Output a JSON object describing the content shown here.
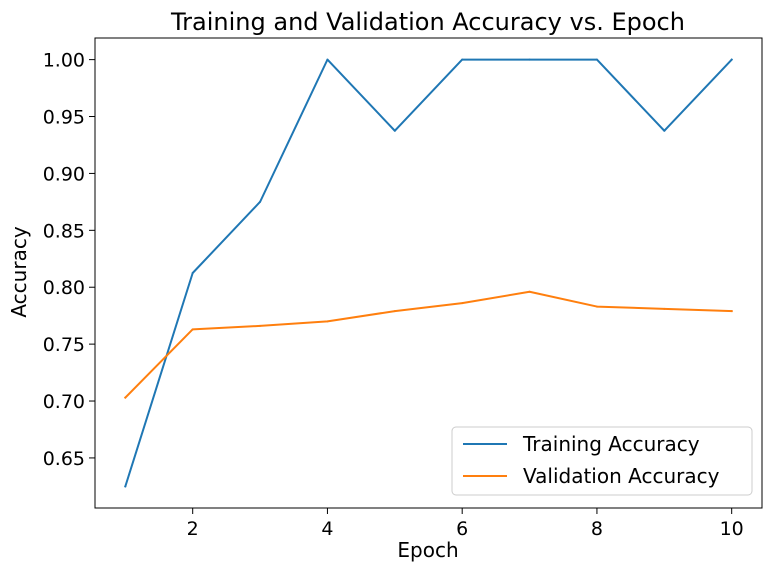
{
  "chart_data": {
    "type": "line",
    "title": "Training and Validation Accuracy vs. Epoch",
    "xlabel": "Epoch",
    "ylabel": "Accuracy",
    "x": [
      1,
      2,
      3,
      4,
      5,
      6,
      7,
      8,
      9,
      10
    ],
    "series": [
      {
        "name": "Training Accuracy",
        "color": "#1f77b4",
        "values": [
          0.625,
          0.8125,
          0.875,
          1.0,
          0.9375,
          1.0,
          1.0,
          1.0,
          0.9375,
          1.0
        ]
      },
      {
        "name": "Validation Accuracy",
        "color": "#ff7f0e",
        "values": [
          0.703,
          0.763,
          0.766,
          0.77,
          0.779,
          0.786,
          0.796,
          0.783,
          0.781,
          0.779
        ]
      }
    ],
    "xlim": [
      0.55,
      10.45
    ],
    "ylim": [
      0.606,
      1.019
    ],
    "xticks": [
      2,
      4,
      6,
      8,
      10
    ],
    "xtick_labels": [
      "2",
      "4",
      "6",
      "8",
      "10"
    ],
    "yticks": [
      0.65,
      0.7,
      0.75,
      0.8,
      0.85,
      0.9,
      0.95,
      1.0
    ],
    "ytick_labels": [
      "0.65",
      "0.70",
      "0.75",
      "0.80",
      "0.85",
      "0.90",
      "0.95",
      "1.00"
    ],
    "grid": false,
    "legend_position": "lower-right"
  }
}
